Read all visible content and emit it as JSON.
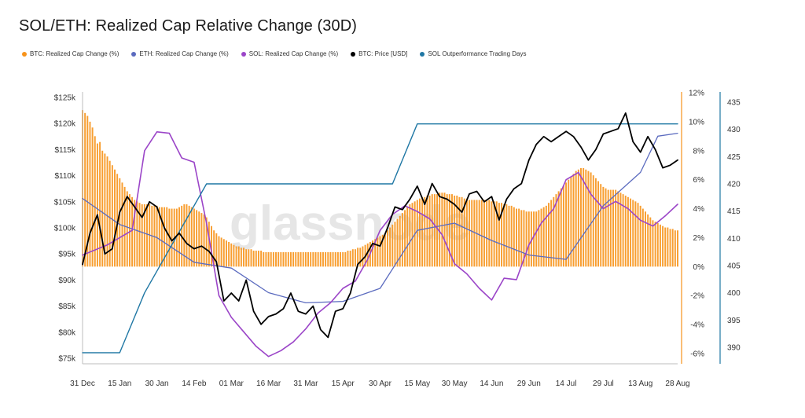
{
  "chart_data": {
    "type": "line",
    "title": "SOL/ETH: Realized Cap Relative Change (30D)",
    "watermark": "glassnode",
    "legend": [
      {
        "key": "btc_rc",
        "label": "BTC: Realized Cap Change (%)",
        "color": "#f7931a"
      },
      {
        "key": "eth_rc",
        "label": "ETH: Realized Cap Change (%)",
        "color": "#5b6bbf"
      },
      {
        "key": "sol_rc",
        "label": "SOL: Realized Cap Change (%)",
        "color": "#9b45c8"
      },
      {
        "key": "btc_price",
        "label": "BTC: Price [USD]",
        "color": "#000000"
      },
      {
        "key": "sol_days",
        "label": "SOL Outperformance Trading Days",
        "color": "#1f77a4"
      }
    ],
    "x_ticks": [
      "31 Dec",
      "15 Jan",
      "30 Jan",
      "14 Feb",
      "01 Mar",
      "16 Mar",
      "31 Mar",
      "15 Apr",
      "30 Apr",
      "15 May",
      "30 May",
      "14 Jun",
      "29 Jun",
      "14 Jul",
      "29 Jul",
      "13 Aug",
      "28 Aug"
    ],
    "y_left": {
      "ticks": [
        "$75k",
        "$80k",
        "$85k",
        "$90k",
        "$95k",
        "$100k",
        "$105k",
        "$110k",
        "$115k",
        "$120k",
        "$125k"
      ],
      "range": [
        75000,
        125000
      ]
    },
    "y_pct": {
      "ticks": [
        "-6%",
        "-4%",
        "-2%",
        "0%",
        "2%",
        "4%",
        "6%",
        "8%",
        "10%",
        "12%"
      ],
      "range": [
        -6,
        12
      ]
    },
    "y_days": {
      "ticks": [
        "390",
        "395",
        "400",
        "405",
        "410",
        "415",
        "420",
        "425",
        "430",
        "435"
      ],
      "range": [
        388,
        436
      ]
    },
    "btc_rc_x": [
      0,
      1,
      2,
      3,
      4,
      5,
      6,
      7,
      8,
      9,
      10,
      11,
      12,
      13,
      14,
      15,
      16,
      17,
      18,
      19,
      20,
      21,
      22,
      23,
      24,
      25,
      26,
      27,
      28,
      29,
      30,
      31,
      32,
      33,
      34,
      35,
      36,
      37,
      38,
      39,
      40,
      41,
      42,
      43,
      44,
      45,
      46,
      47,
      48,
      49,
      50,
      51,
      52,
      53,
      54,
      55,
      56,
      57,
      58,
      59,
      60,
      61,
      62,
      63,
      64,
      65,
      66,
      67,
      68,
      69,
      70,
      71,
      72,
      73,
      74,
      75,
      76,
      77,
      78,
      79,
      80,
      81,
      82,
      83,
      84,
      85,
      86,
      87,
      88,
      89,
      90,
      91,
      92,
      93,
      94,
      95,
      96,
      97,
      98,
      99,
      100,
      101,
      102,
      103,
      104,
      105,
      106,
      107,
      108,
      109,
      110,
      111,
      112,
      113,
      114,
      115,
      116,
      117,
      118,
      119,
      120,
      121,
      122,
      123,
      124,
      125,
      126,
      127,
      128,
      129,
      130,
      131,
      132,
      133,
      134,
      135,
      136,
      137,
      138,
      139,
      140,
      141,
      142,
      143,
      144,
      145,
      146,
      147,
      148,
      149,
      150,
      151,
      152,
      153,
      154,
      155,
      156,
      157,
      158,
      159,
      160,
      161,
      162,
      163,
      164,
      165,
      166,
      167,
      168,
      169,
      170,
      171,
      172,
      173,
      174,
      175,
      176,
      177,
      178,
      179,
      180,
      181,
      182,
      183,
      184,
      185,
      186,
      187,
      188,
      189,
      190,
      191,
      192,
      193,
      194,
      195,
      196,
      197,
      198,
      199,
      200,
      201,
      202,
      203,
      204,
      205,
      206,
      207,
      208,
      209,
      210,
      211,
      212,
      213,
      214,
      215,
      216,
      217,
      218,
      219,
      220,
      221,
      222,
      223,
      224,
      225,
      226,
      227,
      228,
      229,
      230,
      231,
      232,
      233,
      234,
      235,
      236,
      237,
      238,
      239,
      240
    ],
    "btc_rc": [
      10.8,
      10.6,
      10.4,
      10.0,
      9.6,
      9.0,
      8.5,
      8.6,
      8.0,
      7.8,
      7.6,
      7.3,
      7.0,
      6.7,
      6.4,
      6.1,
      5.8,
      5.5,
      5.2,
      5.0,
      4.8,
      4.6,
      4.5,
      4.4,
      4.3,
      4.3,
      4.3,
      4.3,
      4.2,
      4.2,
      4.2,
      4.1,
      4.1,
      4.1,
      4.1,
      4.0,
      4.0,
      4.0,
      4.0,
      4.1,
      4.2,
      4.3,
      4.3,
      4.2,
      4.1,
      4.0,
      3.9,
      3.8,
      3.7,
      3.6,
      3.4,
      3.1,
      2.8,
      2.5,
      2.3,
      2.1,
      2.0,
      1.9,
      1.8,
      1.7,
      1.6,
      1.5,
      1.4,
      1.4,
      1.3,
      1.3,
      1.2,
      1.2,
      1.2,
      1.1,
      1.1,
      1.1,
      1.1,
      1.0,
      1.0,
      1.0,
      1.0,
      1.0,
      1.0,
      1.0,
      1.0,
      1.0,
      1.0,
      1.0,
      1.0,
      1.0,
      1.0,
      1.0,
      1.0,
      1.0,
      1.0,
      1.0,
      1.0,
      1.0,
      1.0,
      1.0,
      1.0,
      1.0,
      1.0,
      1.0,
      1.0,
      1.0,
      1.0,
      1.0,
      1.0,
      1.0,
      1.0,
      1.1,
      1.1,
      1.2,
      1.2,
      1.3,
      1.3,
      1.4,
      1.5,
      1.6,
      1.7,
      1.8,
      1.9,
      2.0,
      2.1,
      2.2,
      2.3,
      2.5,
      2.7,
      2.9,
      3.1,
      3.3,
      3.5,
      3.7,
      3.9,
      4.1,
      4.3,
      4.4,
      4.5,
      4.6,
      4.7,
      4.8,
      4.8,
      4.9,
      4.9,
      5.0,
      5.0,
      5.0,
      5.1,
      5.1,
      5.1,
      5.0,
      5.0,
      5.0,
      4.9,
      4.9,
      4.8,
      4.8,
      4.7,
      4.7,
      4.6,
      4.6,
      4.6,
      4.6,
      4.6,
      4.6,
      4.6,
      4.6,
      4.6,
      4.5,
      4.5,
      4.5,
      4.4,
      4.4,
      4.3,
      4.3,
      4.2,
      4.2,
      4.1,
      4.0,
      4.0,
      3.9,
      3.9,
      3.8,
      3.8,
      3.8,
      3.8,
      3.8,
      3.9,
      4.0,
      4.1,
      4.2,
      4.4,
      4.6,
      4.8,
      5.0,
      5.2,
      5.4,
      5.6,
      5.8,
      6.0,
      6.2,
      6.4,
      6.6,
      6.7,
      6.8,
      6.8,
      6.7,
      6.6,
      6.5,
      6.3,
      6.1,
      5.9,
      5.7,
      5.5,
      5.4,
      5.3,
      5.3,
      5.3,
      5.3,
      5.2,
      5.1,
      5.0,
      4.9,
      4.8,
      4.7,
      4.6,
      4.5,
      4.4,
      4.2,
      4.0,
      3.8,
      3.6,
      3.4,
      3.2,
      3.1,
      3.0,
      2.9,
      2.8,
      2.7,
      2.7,
      2.6,
      2.6,
      2.5,
      2.5
    ],
    "eth_x": [
      0,
      15,
      30,
      45,
      60,
      75,
      90,
      105,
      120,
      135,
      150,
      165,
      180,
      195,
      210,
      225,
      232,
      240
    ],
    "eth_rc": [
      4.7,
      2.9,
      2.0,
      0.3,
      -0.1,
      -1.8,
      -2.5,
      -2.4,
      -1.5,
      2.5,
      3.0,
      1.8,
      0.8,
      0.5,
      4.2,
      6.5,
      9.0,
      9.2
    ],
    "sol_x": [
      0,
      10,
      20,
      25,
      30,
      35,
      40,
      45,
      50,
      55,
      60,
      65,
      70,
      75,
      80,
      85,
      90,
      95,
      100,
      105,
      110,
      115,
      120,
      125,
      130,
      135,
      140,
      145,
      150,
      155,
      160,
      165,
      170,
      175,
      180,
      185,
      190,
      195,
      200,
      205,
      210,
      215,
      220,
      225,
      230,
      235,
      240
    ],
    "sol_rc": [
      0.8,
      1.5,
      2.5,
      8.0,
      9.3,
      9.2,
      7.5,
      7.2,
      3.0,
      -2.0,
      -3.5,
      -4.5,
      -5.5,
      -6.2,
      -5.8,
      -5.2,
      -4.3,
      -3.2,
      -2.5,
      -1.5,
      -1.0,
      0.5,
      2.5,
      3.6,
      4.2,
      3.8,
      3.3,
      2.2,
      0.2,
      -0.5,
      -1.5,
      -2.3,
      -0.8,
      -0.9,
      1.5,
      3.0,
      4.0,
      6.0,
      6.5,
      5.0,
      4.0,
      4.5,
      4.0,
      3.2,
      2.8,
      3.5,
      4.3
    ],
    "price_x": [
      0,
      3,
      6,
      9,
      12,
      15,
      18,
      21,
      24,
      27,
      30,
      33,
      36,
      39,
      42,
      45,
      48,
      51,
      54,
      57,
      60,
      63,
      66,
      69,
      72,
      75,
      78,
      81,
      84,
      87,
      90,
      93,
      96,
      99,
      102,
      105,
      108,
      111,
      114,
      117,
      120,
      123,
      126,
      129,
      132,
      135,
      138,
      141,
      144,
      147,
      150,
      153,
      156,
      159,
      162,
      165,
      168,
      171,
      174,
      177,
      180,
      183,
      186,
      189,
      192,
      195,
      198,
      201,
      204,
      207,
      210,
      213,
      216,
      219,
      222,
      225,
      228,
      231,
      234,
      237,
      240
    ],
    "btc_price": [
      93000,
      99000,
      102500,
      95000,
      96000,
      103000,
      106000,
      104000,
      102000,
      105000,
      104000,
      100000,
      97500,
      99000,
      97000,
      96000,
      96500,
      95500,
      93500,
      86000,
      87500,
      86000,
      90000,
      84000,
      81500,
      83000,
      83500,
      84500,
      87500,
      84000,
      83500,
      85000,
      80500,
      79000,
      84000,
      84500,
      87500,
      93000,
      94500,
      97000,
      96500,
      100000,
      104000,
      103500,
      105500,
      108000,
      104500,
      108500,
      106000,
      105500,
      104500,
      103000,
      106500,
      107000,
      105000,
      106000,
      101500,
      105500,
      107500,
      108500,
      113000,
      116000,
      117500,
      116500,
      117500,
      118500,
      117500,
      115500,
      113000,
      115000,
      118000,
      118500,
      119000,
      122000,
      116500,
      114500,
      117500,
      115000,
      111500,
      112000,
      113000
    ],
    "sol_days_x": [
      0,
      10,
      15,
      25,
      50,
      60,
      120,
      125,
      135,
      160,
      200,
      230,
      240
    ],
    "sol_days": [
      389,
      389,
      389,
      400,
      420,
      420,
      420,
      420,
      431,
      431,
      431,
      431,
      431
    ]
  }
}
